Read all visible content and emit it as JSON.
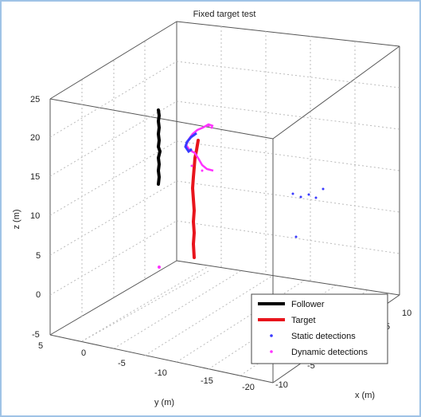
{
  "chart_data": {
    "type": "3d-line-scatter",
    "title": "Fixed target test",
    "xlabel": "x (m)",
    "ylabel": "y (m)",
    "zlabel": "z (m)",
    "xlim": [
      -10,
      10
    ],
    "ylim": [
      -20,
      5
    ],
    "zlim": [
      -5,
      25
    ],
    "x_ticks": [
      "-10",
      "-5",
      "0",
      "5",
      "10"
    ],
    "y_ticks": [
      "5",
      "0",
      "-5",
      "-10",
      "-15",
      "-20"
    ],
    "z_ticks": [
      "25",
      "20",
      "15",
      "10",
      "5",
      "0",
      "-5"
    ],
    "grid": true,
    "legend_position": "bottom-right",
    "series": [
      {
        "name": "Follower",
        "type": "line",
        "color": "#000000",
        "z_range": [
          14,
          23.5
        ]
      },
      {
        "name": "Target",
        "type": "line",
        "color": "#e8141c",
        "z_range": [
          4.5,
          20
        ]
      },
      {
        "name": "Static detections",
        "type": "scatter",
        "color": "#3a3aff"
      },
      {
        "name": "Dynamic detections",
        "type": "scatter",
        "color": "#ff33ff"
      }
    ]
  }
}
